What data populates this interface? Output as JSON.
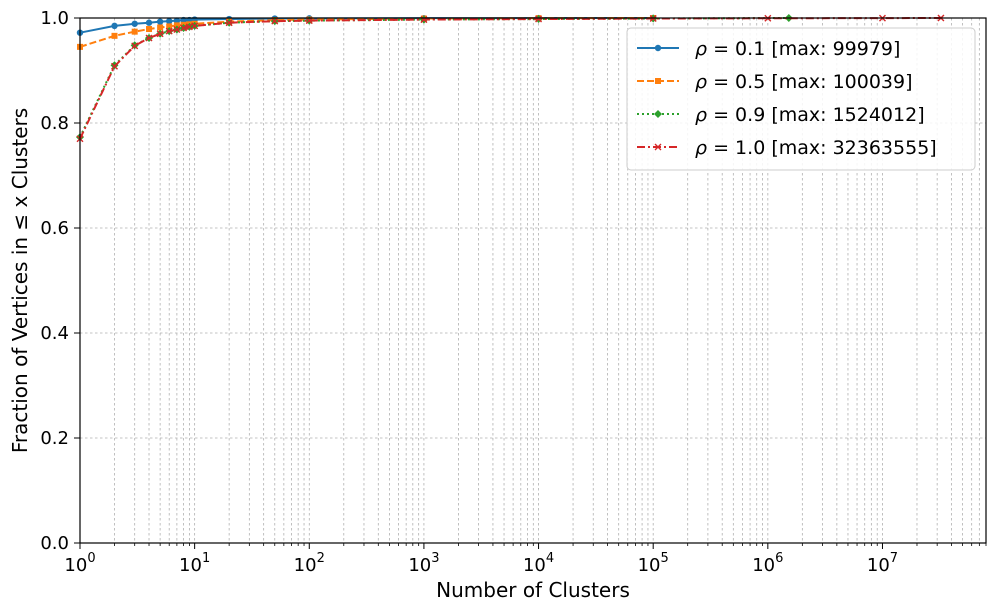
{
  "chart_data": {
    "type": "line",
    "title": "",
    "xlabel": "Number of Clusters",
    "ylabel": "Fraction of Vertices in ≤ x Clusters",
    "x_scale": "log",
    "xlim": [
      1,
      80000000
    ],
    "ylim": [
      0.0,
      1.0
    ],
    "grid": true,
    "legend_position": "top-right",
    "x_ticks": [
      {
        "value": 1,
        "mantissa": "10",
        "exp": "0"
      },
      {
        "value": 10,
        "mantissa": "10",
        "exp": "1"
      },
      {
        "value": 100,
        "mantissa": "10",
        "exp": "2"
      },
      {
        "value": 1000,
        "mantissa": "10",
        "exp": "3"
      },
      {
        "value": 10000,
        "mantissa": "10",
        "exp": "4"
      },
      {
        "value": 100000,
        "mantissa": "10",
        "exp": "5"
      },
      {
        "value": 1000000,
        "mantissa": "10",
        "exp": "6"
      },
      {
        "value": 10000000,
        "mantissa": "10",
        "exp": "7"
      }
    ],
    "y_ticks": [
      {
        "value": 0.0,
        "label": "0.0"
      },
      {
        "value": 0.2,
        "label": "0.2"
      },
      {
        "value": 0.4,
        "label": "0.4"
      },
      {
        "value": 0.6,
        "label": "0.6"
      },
      {
        "value": 0.8,
        "label": "0.8"
      },
      {
        "value": 1.0,
        "label": "1.0"
      }
    ],
    "series": [
      {
        "name": "ρ = 0.1 [max: 99979]",
        "name_symbol": "ρ",
        "name_eq": " = 0.1",
        "name_suffix": " [max: 99979]",
        "color": "#1f77b4",
        "line_style": "solid",
        "marker": "circle",
        "x": [
          1,
          2,
          3,
          4,
          5,
          6,
          7,
          8,
          9,
          10,
          20,
          50,
          100,
          1000,
          10000,
          99979
        ],
        "y": [
          0.972,
          0.985,
          0.989,
          0.991,
          0.993,
          0.994,
          0.995,
          0.996,
          0.996,
          0.997,
          0.998,
          0.999,
          0.9993,
          0.9997,
          0.9999,
          1.0
        ]
      },
      {
        "name": "ρ = 0.5 [max: 100039]",
        "name_symbol": "ρ",
        "name_eq": " = 0.5",
        "name_suffix": " [max: 100039]",
        "color": "#ff7f0e",
        "line_style": "dashed",
        "marker": "square",
        "x": [
          1,
          2,
          3,
          4,
          5,
          6,
          7,
          8,
          9,
          10,
          20,
          50,
          100,
          1000,
          10000,
          100039
        ],
        "y": [
          0.945,
          0.966,
          0.974,
          0.979,
          0.982,
          0.984,
          0.986,
          0.987,
          0.988,
          0.989,
          0.993,
          0.996,
          0.997,
          0.999,
          0.9997,
          1.0
        ]
      },
      {
        "name": "ρ = 0.9 [max: 1524012]",
        "name_symbol": "ρ",
        "name_eq": " = 0.9",
        "name_suffix": " [max: 1524012]",
        "color": "#2ca02c",
        "line_style": "dotted",
        "marker": "diamond",
        "x": [
          1,
          2,
          3,
          4,
          5,
          6,
          7,
          8,
          9,
          10,
          20,
          50,
          100,
          1000,
          10000,
          100000,
          1524012
        ],
        "y": [
          0.773,
          0.91,
          0.948,
          0.962,
          0.97,
          0.975,
          0.978,
          0.981,
          0.983,
          0.985,
          0.991,
          0.994,
          0.995,
          0.997,
          0.998,
          0.999,
          1.0
        ]
      },
      {
        "name": "ρ = 1.0 [max: 32363555]",
        "name_symbol": "ρ",
        "name_eq": " = 1.0",
        "name_suffix": " [max: 32363555]",
        "color": "#d62728",
        "line_style": "dashdot",
        "marker": "x",
        "x": [
          1,
          2,
          3,
          4,
          5,
          6,
          7,
          8,
          9,
          10,
          20,
          50,
          100,
          1000,
          10000,
          100000,
          1000000,
          10000000,
          32363555
        ],
        "y": [
          0.77,
          0.908,
          0.947,
          0.962,
          0.97,
          0.975,
          0.978,
          0.981,
          0.983,
          0.985,
          0.991,
          0.994,
          0.995,
          0.997,
          0.998,
          0.999,
          0.9995,
          0.9998,
          1.0
        ]
      }
    ]
  }
}
